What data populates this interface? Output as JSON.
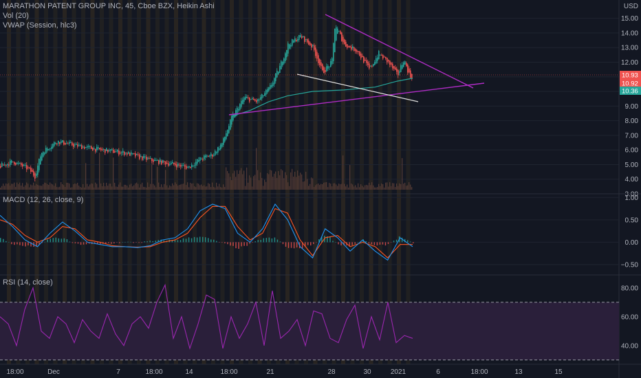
{
  "colors": {
    "background": "#131722",
    "grid": "#1f2430",
    "session_stripe": "#3a3020",
    "candle_up": "#26a69a",
    "candle_down": "#ef5350",
    "volume": "#5d4037",
    "vwap": "#26a69a",
    "trendline_magenta": "#b02cc6",
    "trendline_white": "#e0e0e0",
    "macd_line": "#2196f3",
    "signal_line": "#ff5722",
    "rsi_line": "#9c27b0",
    "rsi_band": "#2a1f3a"
  },
  "price_pane": {
    "title": "MARATHON PATENT GROUP INC, 45, Cboe BZX, Heikin Ashi",
    "volume_label": "Vol (20)",
    "vwap_label": "VWAP (Session, hlc3)",
    "currency": "USD",
    "price_tags": [
      {
        "value": "10.93",
        "color": "#ef5350"
      },
      {
        "value": "10.92",
        "color": "#ef5350"
      },
      {
        "value": "10.36",
        "color": "#26a69a"
      }
    ]
  },
  "macd_pane": {
    "label": "MACD (12, 26, close, 9)"
  },
  "rsi_pane": {
    "label": "RSI (14, close)"
  },
  "chart_data": [
    {
      "type": "candlestick",
      "title": "MARATHON PATENT GROUP INC, 45, Cboe BZX, Heikin Ashi",
      "ylabel": "USD",
      "y_ticks": [
        "15.00",
        "14.00",
        "13.00",
        "12.00",
        "11.00",
        "10.00",
        "9.00",
        "8.00",
        "7.00",
        "6.00",
        "5.00",
        "4.00",
        "3.00"
      ],
      "x_ticks": [
        "18:00",
        "Dec",
        "7",
        "18:00",
        "14",
        "18:00",
        "21",
        "28",
        "30",
        "2021",
        "6",
        "18:00",
        "13",
        "15"
      ],
      "ylim": [
        3,
        15.5
      ],
      "close_path": [
        {
          "x": 0,
          "y": 4.9
        },
        {
          "x": 0.02,
          "y": 5.2
        },
        {
          "x": 0.045,
          "y": 4.7
        },
        {
          "x": 0.055,
          "y": 4.2
        },
        {
          "x": 0.065,
          "y": 5.8
        },
        {
          "x": 0.09,
          "y": 6.6
        },
        {
          "x": 0.12,
          "y": 6.3
        },
        {
          "x": 0.16,
          "y": 6.0
        },
        {
          "x": 0.2,
          "y": 5.8
        },
        {
          "x": 0.24,
          "y": 5.3
        },
        {
          "x": 0.28,
          "y": 5.0
        },
        {
          "x": 0.3,
          "y": 4.8
        },
        {
          "x": 0.32,
          "y": 5.4
        },
        {
          "x": 0.34,
          "y": 5.7
        },
        {
          "x": 0.355,
          "y": 6.5
        },
        {
          "x": 0.37,
          "y": 8.2
        },
        {
          "x": 0.39,
          "y": 9.6
        },
        {
          "x": 0.41,
          "y": 9.3
        },
        {
          "x": 0.43,
          "y": 10.2
        },
        {
          "x": 0.445,
          "y": 11.5
        },
        {
          "x": 0.46,
          "y": 13.2
        },
        {
          "x": 0.48,
          "y": 13.8
        },
        {
          "x": 0.5,
          "y": 13.0
        },
        {
          "x": 0.515,
          "y": 11.3
        },
        {
          "x": 0.53,
          "y": 12.0
        },
        {
          "x": 0.535,
          "y": 14.6
        },
        {
          "x": 0.55,
          "y": 13.2
        },
        {
          "x": 0.57,
          "y": 12.8
        },
        {
          "x": 0.59,
          "y": 11.5
        },
        {
          "x": 0.605,
          "y": 12.6
        },
        {
          "x": 0.62,
          "y": 12.0
        },
        {
          "x": 0.635,
          "y": 11.1
        },
        {
          "x": 0.645,
          "y": 12.2
        },
        {
          "x": 0.655,
          "y": 11.0
        },
        {
          "x": 0.66,
          "y": 11.0
        }
      ],
      "vwap_path": [
        {
          "x": 0.37,
          "y": 8.3
        },
        {
          "x": 0.4,
          "y": 8.7
        },
        {
          "x": 0.43,
          "y": 9.3
        },
        {
          "x": 0.46,
          "y": 9.7
        },
        {
          "x": 0.5,
          "y": 10.0
        },
        {
          "x": 0.55,
          "y": 10.1
        },
        {
          "x": 0.6,
          "y": 10.3
        },
        {
          "x": 0.635,
          "y": 10.7
        },
        {
          "x": 0.66,
          "y": 10.9
        }
      ]
    },
    {
      "type": "line",
      "title": "MACD (12, 26, close, 9)",
      "y_ticks": [
        "1.00",
        "0.50",
        "0.00",
        "−0.50"
      ],
      "ylim": [
        -0.7,
        1.05
      ],
      "series": [
        {
          "name": "MACD",
          "values": [
            0.6,
            0.35,
            0.05,
            -0.1,
            0.2,
            0.45,
            0.25,
            0.0,
            -0.05,
            -0.1,
            -0.1,
            -0.12,
            -0.08,
            0.05,
            0.1,
            0.3,
            0.7,
            0.85,
            0.75,
            0.2,
            0.0,
            0.3,
            0.85,
            0.5,
            -0.1,
            -0.35,
            0.3,
            0.1,
            -0.2,
            0.05,
            -0.2,
            -0.4,
            0.1,
            -0.1
          ]
        },
        {
          "name": "Signal",
          "values": [
            0.5,
            0.4,
            0.15,
            0.0,
            0.1,
            0.35,
            0.3,
            0.05,
            0.0,
            -0.08,
            -0.1,
            -0.11,
            -0.1,
            0.0,
            0.05,
            0.2,
            0.55,
            0.8,
            0.8,
            0.35,
            0.05,
            0.2,
            0.75,
            0.65,
            0.05,
            -0.3,
            0.1,
            0.15,
            -0.1,
            0.0,
            -0.1,
            -0.35,
            -0.05,
            -0.05
          ]
        }
      ]
    },
    {
      "type": "line",
      "title": "RSI (14, close)",
      "y_ticks": [
        "80.00",
        "60.00",
        "40.00"
      ],
      "ylim": [
        28,
        88
      ],
      "band": [
        30,
        70
      ],
      "series": [
        {
          "name": "RSI",
          "values": [
            60,
            55,
            40,
            65,
            80,
            50,
            45,
            60,
            55,
            42,
            58,
            50,
            45,
            62,
            48,
            40,
            55,
            60,
            52,
            70,
            82,
            45,
            60,
            38,
            55,
            75,
            72,
            38,
            60,
            45,
            55,
            70,
            40,
            78,
            45,
            50,
            58,
            40,
            64,
            62,
            45,
            42,
            58,
            68,
            38,
            60,
            44,
            70,
            42,
            47,
            45
          ]
        }
      ]
    }
  ]
}
